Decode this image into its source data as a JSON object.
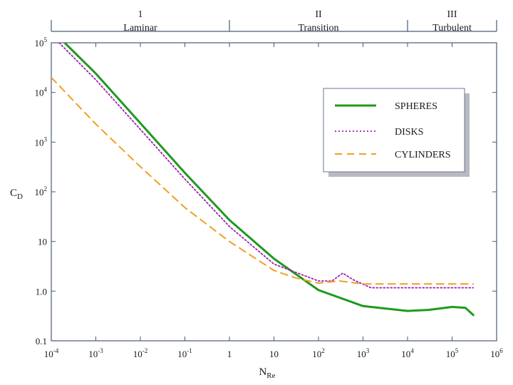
{
  "chart_data": {
    "type": "line",
    "xscale": "log",
    "yscale": "log",
    "xlabel": "N",
    "xlabel_sub": "Re",
    "ylabel": "C",
    "ylabel_sub": "D",
    "xlim": [
      0.0001,
      1000000
    ],
    "ylim": [
      0.1,
      100000
    ],
    "x_ticks": [
      {
        "base": "10",
        "exp": "-4"
      },
      {
        "base": "10",
        "exp": "-3"
      },
      {
        "base": "10",
        "exp": "-2"
      },
      {
        "base": "10",
        "exp": "-1"
      },
      {
        "base": "1",
        "exp": ""
      },
      {
        "base": "10",
        "exp": ""
      },
      {
        "base": "10",
        "exp": "2"
      },
      {
        "base": "10",
        "exp": "3"
      },
      {
        "base": "10",
        "exp": "4"
      },
      {
        "base": "10",
        "exp": "5"
      },
      {
        "base": "10",
        "exp": "6"
      }
    ],
    "y_ticks": [
      {
        "base": "10",
        "exp": "5"
      },
      {
        "base": "10",
        "exp": "4"
      },
      {
        "base": "10",
        "exp": "3"
      },
      {
        "base": "10",
        "exp": "2"
      },
      {
        "base": "10",
        "exp": ""
      },
      {
        "base": "1.0",
        "exp": ""
      },
      {
        "base": "0.1",
        "exp": ""
      }
    ],
    "regions": [
      {
        "number": "1",
        "name": "Laminar",
        "x_range": [
          0.0001,
          1
        ]
      },
      {
        "number": "II",
        "name": "Transition",
        "x_range": [
          1,
          10000
        ]
      },
      {
        "number": "III",
        "name": "Turbulent",
        "x_range": [
          10000,
          1000000
        ]
      }
    ],
    "legend_position": "upper-right",
    "series": [
      {
        "name": "SPHERES",
        "color": "#1e9a1e",
        "style": "solid",
        "points": [
          [
            0.0002,
            100000
          ],
          [
            0.001,
            24000
          ],
          [
            0.01,
            2400
          ],
          [
            0.1,
            240
          ],
          [
            1,
            27
          ],
          [
            10,
            4.5
          ],
          [
            100,
            1.05
          ],
          [
            1000,
            0.5
          ],
          [
            10000,
            0.4
          ],
          [
            30000,
            0.42
          ],
          [
            100000,
            0.48
          ],
          [
            200000,
            0.46
          ],
          [
            300000,
            0.33
          ]
        ]
      },
      {
        "name": "DISKS",
        "color": "#9b1fb0",
        "style": "dotted",
        "points": [
          [
            0.00015,
            100000
          ],
          [
            0.001,
            18000
          ],
          [
            0.01,
            1800
          ],
          [
            0.1,
            180
          ],
          [
            1,
            20
          ],
          [
            10,
            3.5
          ],
          [
            100,
            1.6
          ],
          [
            200,
            1.6
          ],
          [
            350,
            2.3
          ],
          [
            600,
            1.7
          ],
          [
            1500,
            1.17
          ],
          [
            300000,
            1.17
          ]
        ]
      },
      {
        "name": "CYLINDERS",
        "color": "#f0a020",
        "style": "dashed",
        "points": [
          [
            0.0001,
            20000
          ],
          [
            0.001,
            2300
          ],
          [
            0.01,
            320
          ],
          [
            0.1,
            48
          ],
          [
            1,
            10
          ],
          [
            10,
            2.6
          ],
          [
            30,
            1.85
          ],
          [
            100,
            1.45
          ],
          [
            300,
            1.6
          ],
          [
            1000,
            1.4
          ],
          [
            300000,
            1.4
          ]
        ]
      }
    ]
  }
}
